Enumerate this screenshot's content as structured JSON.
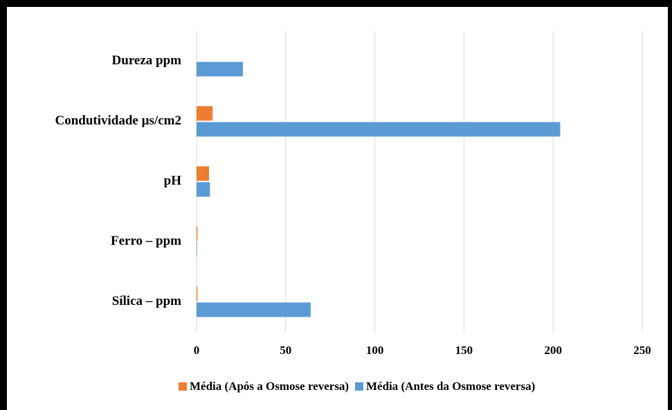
{
  "chart_data": {
    "type": "barh",
    "categories": [
      "Dureza ppm",
      "Condutividade µs/cm2",
      "pH",
      "Ferro – ppm",
      "Sílica – ppm"
    ],
    "series": [
      {
        "name": "Média (Após a Osmose reversa)",
        "color": "#ed7d31",
        "values": [
          0,
          9,
          7,
          0.5,
          0.5
        ]
      },
      {
        "name": "Média (Antes da Osmose reversa)",
        "color": "#5b9bd5",
        "values": [
          26,
          204,
          7.5,
          0.3,
          64
        ]
      }
    ],
    "xlim": [
      0,
      250
    ],
    "xticks": [
      0,
      50,
      100,
      150,
      200,
      250
    ],
    "grid": true,
    "legend": "bottom"
  }
}
